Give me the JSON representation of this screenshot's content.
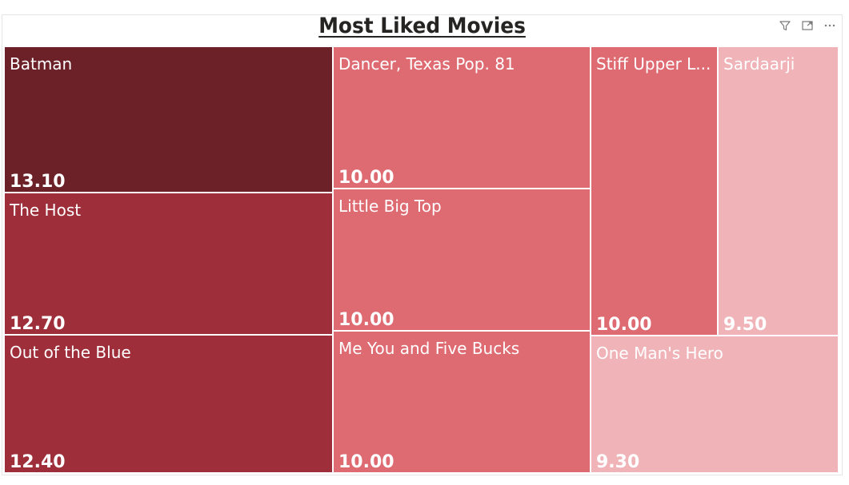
{
  "chart_data": {
    "type": "treemap",
    "title": "Most Liked Movies",
    "items": [
      {
        "label": "Batman",
        "value": 13.1,
        "display_value": "13.10",
        "color": "#6b2127"
      },
      {
        "label": "The Host",
        "value": 12.7,
        "display_value": "12.70",
        "color": "#9e2f3a"
      },
      {
        "label": "Out of the Blue",
        "value": 12.4,
        "display_value": "12.40",
        "color": "#9e2f3a"
      },
      {
        "label": "Dancer, Texas Pop. 81",
        "value": 10.0,
        "display_value": "10.00",
        "color": "#de6a72"
      },
      {
        "label": "Little Big Top",
        "value": 10.0,
        "display_value": "10.00",
        "color": "#de6a72"
      },
      {
        "label": "Me You and Five Bucks",
        "value": 10.0,
        "display_value": "10.00",
        "color": "#de6a72"
      },
      {
        "label": "Stiff Upper Lips",
        "display_label": "Stiff Upper L...",
        "value": 10.0,
        "display_value": "10.00",
        "color": "#de6a72"
      },
      {
        "label": "Sardaarji",
        "value": 9.5,
        "display_value": "9.50",
        "color": "#efb3b8"
      },
      {
        "label": "One Man's Hero",
        "value": 9.3,
        "display_value": "9.30",
        "color": "#efb3b8"
      }
    ]
  },
  "header_icons": [
    "filter-icon",
    "focus-mode-icon",
    "more-options-icon"
  ]
}
